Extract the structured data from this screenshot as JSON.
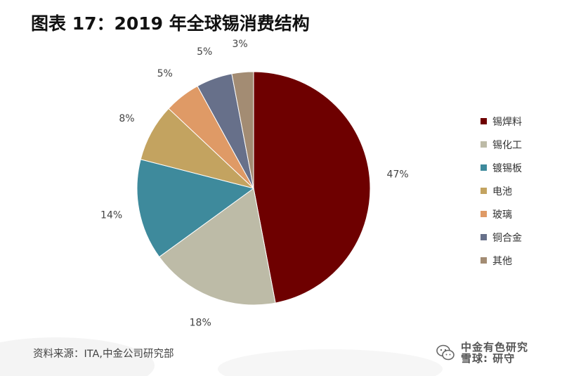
{
  "header": {
    "title": "图表 17：2019 年全球锡消费结构"
  },
  "chart_data": {
    "type": "pie",
    "title": "图表 17：2019 年全球锡消费结构",
    "slices": [
      {
        "name": "锡焊料",
        "value": 47,
        "label": "47%",
        "color": "#6E0000"
      },
      {
        "name": "锡化工",
        "value": 18,
        "label": "18%",
        "color": "#BDBBA7"
      },
      {
        "name": "镀锡板",
        "value": 14,
        "label": "14%",
        "color": "#3E8A9C"
      },
      {
        "name": "电池",
        "value": 8,
        "label": "8%",
        "color": "#C3A360"
      },
      {
        "name": "玻璃",
        "value": 5,
        "label": "5%",
        "color": "#DF9A66"
      },
      {
        "name": "铜合金",
        "value": 5,
        "label": "5%",
        "color": "#67708A"
      },
      {
        "name": "其他",
        "value": 3,
        "label": "3%",
        "color": "#A38C73"
      }
    ],
    "legend_position": "right",
    "start_angle": "12 o'clock",
    "direction": "clockwise"
  },
  "footer": {
    "source": "资料来源：ITA,中金公司研究部",
    "watermark_line1": "中金有色研究",
    "watermark_line2": "雪球: 研守"
  }
}
